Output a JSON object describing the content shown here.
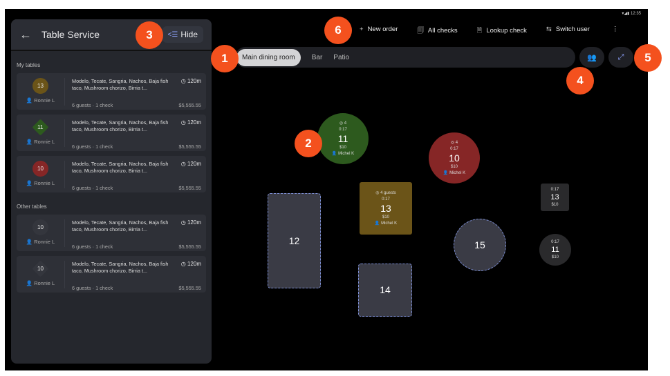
{
  "status_bar": {
    "time": "12:35"
  },
  "panel": {
    "title": "Table Service",
    "hide_label": "Hide",
    "my_tables_label": "My tables",
    "other_tables_label": "Other tables",
    "my_tables": [
      {
        "table": "13",
        "shape": "circle",
        "color": "#6b5418",
        "server": "Ronnie L",
        "items": "Modelo, Tecate, Sangria, Nachos, Baja fish taco, Mushroom chorizo, Birria t...",
        "time": "120m",
        "guests": "6 guests · 1 check",
        "amount": "$5,555.55"
      },
      {
        "table": "11",
        "shape": "diamond",
        "color": "#2d5a1e",
        "server": "Ronnie L",
        "items": "Modelo, Tecate, Sangria, Nachos, Baja fish taco, Mushroom chorizo, Birria t...",
        "time": "120m",
        "guests": "6 guests · 1 check",
        "amount": "$5,555.55"
      },
      {
        "table": "10",
        "shape": "circle",
        "color": "#862626",
        "server": "Ronnie L",
        "items": "Modelo, Tecate, Sangria, Nachos, Baja fish taco, Mushroom chorizo, Birria t...",
        "time": "120m",
        "guests": "6 guests · 1 check",
        "amount": "$5,555.55"
      }
    ],
    "other_tables": [
      {
        "table": "10",
        "shape": "circle",
        "color": "#34363d",
        "server": "Ronnie L",
        "items": "Modelo, Tecate, Sangria, Nachos, Baja fish taco, Mushroom chorizo, Birria t...",
        "time": "120m",
        "guests": "6 guests · 1 check",
        "amount": "$5,555.55"
      },
      {
        "table": "10",
        "shape": "diamond",
        "color": "#34363d",
        "server": "Ronnie L",
        "items": "Modelo, Tecate, Sangria, Nachos, Baja fish taco, Mushroom chorizo, Birria t...",
        "time": "120m",
        "guests": "6 guests · 1 check",
        "amount": "$5,555.55"
      }
    ]
  },
  "actions": {
    "new_order": "New order",
    "all_checks": "All checks",
    "lookup_check": "Lookup check",
    "switch_user": "Switch user"
  },
  "tabs": [
    "Main dining room",
    "Bar",
    "Patio"
  ],
  "floor": {
    "t11": {
      "guests": "4",
      "time": "0:17",
      "num": "11",
      "amount": "$10",
      "server": "Michel K"
    },
    "t10": {
      "guests": "4",
      "time": "0:17",
      "num": "10",
      "amount": "$10",
      "server": "Michel K"
    },
    "t13": {
      "guests": "4 guests",
      "time": "0:17",
      "num": "13",
      "amount": "$10",
      "server": "Michel K"
    },
    "t12": {
      "num": "12"
    },
    "t14": {
      "num": "14"
    },
    "t15": {
      "num": "15"
    },
    "t13s": {
      "time": "0:17",
      "num": "13",
      "amount": "$10"
    },
    "t11s": {
      "time": "0:17",
      "num": "11",
      "amount": "$10"
    }
  },
  "badges": [
    "1",
    "2",
    "3",
    "4",
    "5",
    "6"
  ]
}
